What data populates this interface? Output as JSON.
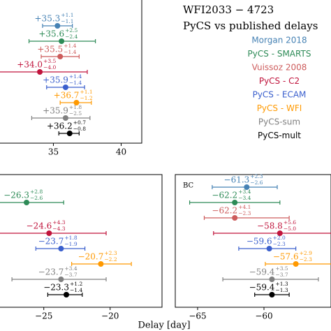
{
  "chart_data": [
    {
      "type": "errorbar",
      "title": "WFI2033 − 4723",
      "subtitle": "PyCS vs published delays",
      "legend_names": [
        "Morgan 2018",
        "PyCS - SMARTS",
        "Vuissoz 2008",
        "PyCS - C2",
        "PyCS - ECAM",
        "PyCS - WFI",
        "PyCS-sum",
        "PyCS-mult"
      ],
      "colors": [
        "#4682b4",
        "#2e8b57",
        "#cd5c5c",
        "#c0143c",
        "#3a5fcd",
        "#ff9900",
        "#808080",
        "#000000"
      ],
      "xlim": [
        31.06,
        41.52
      ],
      "xticks": [
        35,
        40
      ],
      "values": [
        35.3,
        35.6,
        35.5,
        34.0,
        35.9,
        36.7,
        35.9,
        36.2
      ],
      "value_labels": [
        "+35.3",
        "+35.6",
        "+35.5",
        "+34.0",
        "+35.9",
        "+36.7",
        "+35.9",
        "+36.2"
      ],
      "err_plus": [
        1.1,
        2.5,
        1.4,
        3.5,
        1.4,
        1.1,
        1.8,
        0.7
      ],
      "err_plus_labels": [
        "+1.1",
        "+2.5",
        "+1.4",
        "+3.5",
        "+1.4",
        "+1.1",
        "+1.8",
        "+0.7"
      ],
      "err_minus": [
        1.1,
        2.4,
        1.4,
        4.0,
        1.4,
        1.2,
        2.5,
        0.8
      ],
      "err_minus_labels": [
        "−1.1",
        "−2.4",
        "−1.4",
        "−4.0",
        "−1.4",
        "−1.2",
        "−2.5",
        "−0.8"
      ]
    },
    {
      "type": "errorbar",
      "x_label": "Delay [day]",
      "xlim": [
        -28.3,
        -16.09
      ],
      "xticks": [
        {
          "value": -25,
          "label": "−25"
        },
        {
          "value": -20,
          "label": "−20"
        }
      ],
      "values": [
        null,
        -26.3,
        null,
        -24.6,
        -23.7,
        -20.7,
        -23.7,
        -23.3
      ],
      "value_labels": [
        null,
        "−26.3",
        null,
        "−24.6",
        "−23.7",
        "−20.7",
        "−23.7",
        "−23.3"
      ],
      "err_plus": [
        null,
        2.8,
        null,
        4.3,
        1.8,
        2.3,
        3.4,
        1.2
      ],
      "err_plus_labels": [
        null,
        "+2.8",
        null,
        "+4.3",
        "+1.8",
        "+2.3",
        "+3.4",
        "+1.2"
      ],
      "err_minus": [
        null,
        2.6,
        null,
        4.3,
        1.9,
        2.2,
        3.7,
        1.4
      ],
      "err_minus_labels": [
        null,
        "−2.6",
        null,
        "−4.3",
        "−1.9",
        "−2.2",
        "−3.7",
        "−1.4"
      ]
    },
    {
      "type": "errorbar",
      "panel_label": "BC",
      "xlim": [
        -66.63,
        -54.95
      ],
      "xticks": [
        {
          "value": -65,
          "label": "−65"
        },
        {
          "value": -60,
          "label": "−60"
        }
      ],
      "values": [
        -61.3,
        -62.2,
        -62.2,
        -58.8,
        -59.6,
        -57.6,
        -59.4,
        -59.4
      ],
      "value_labels": [
        "−61.3",
        "−62.2",
        "−62.2",
        "−58.8",
        "−59.6",
        "−57.6",
        "−59.4",
        "−59.4"
      ],
      "err_plus": [
        2.3,
        3.4,
        4.1,
        5.6,
        2.0,
        2.9,
        3.5,
        1.3
      ],
      "err_plus_labels": [
        "+2.3",
        "+3.4",
        "+4.1",
        "+5.6",
        "+2.0",
        "+2.9",
        "+3.5",
        "+1.3"
      ],
      "err_minus": [
        2.6,
        3.4,
        2.3,
        5.0,
        2.3,
        2.3,
        3.7,
        1.3
      ],
      "err_minus_labels": [
        "−2.6",
        "−3.4",
        "−2.3",
        "−5.0",
        "−2.3",
        "−2.3",
        "−3.7",
        "−1.3"
      ]
    }
  ]
}
